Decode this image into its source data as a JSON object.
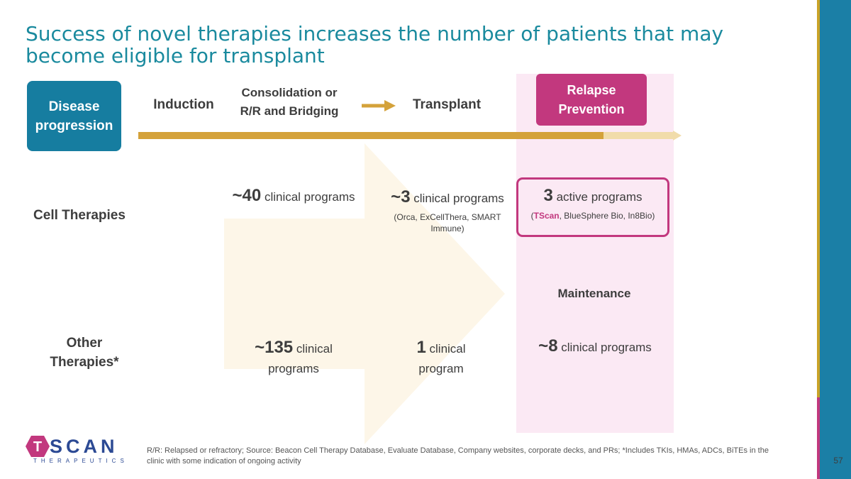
{
  "title": "Success of novel therapies increases the number of patients that may become eligible for transplant",
  "header": {
    "disease_progression": [
      "Disease",
      "progression"
    ],
    "induction": "Induction",
    "consolidation": [
      "Consolidation or",
      "R/R and Bridging"
    ],
    "transplant": "Transplant",
    "relapse_prevention": [
      "Relapse",
      "Prevention"
    ]
  },
  "rows": {
    "cell_therapies": "Cell Therapies",
    "other_therapies": [
      "Other",
      "Therapies*"
    ]
  },
  "cells": {
    "cell_consolidation": {
      "num": "~40",
      "text": " clinical programs"
    },
    "cell_transplant": {
      "num": "~3",
      "text": " clinical programs",
      "note": [
        "(Orca, ExCellThera, SMART",
        "Immune)"
      ]
    },
    "cell_relapse": {
      "num": "3",
      "text": " active programs",
      "note_prefix": "(",
      "note_brand": "TScan",
      "note_rest": ", BlueSphere Bio, In8Bio)"
    },
    "maintenance": "Maintenance",
    "other_consolidation": {
      "num": "~135",
      "text": " clinical",
      "line2": "programs"
    },
    "other_transplant": {
      "num": "1",
      "text": " clinical",
      "line2": "program"
    },
    "other_relapse": {
      "num": "~8",
      "text": " clinical programs"
    }
  },
  "footnote": "R/R: Relapsed or refractory; Source: Beacon Cell Therapy Database, Evaluate Database, Company websites, corporate decks, and PRs; *Includes TKIs, HMAs, ADCs, BiTEs in the clinic with some indication of ongoing activity",
  "page_number": "57",
  "logo": {
    "letter": "T",
    "word": "SCAN",
    "sub": "THERAPEUTICS"
  },
  "colors": {
    "title": "#1a8a9e",
    "disease_box": "#167da0",
    "relapse_box": "#c2387e",
    "timeline": "#d4a23a",
    "arrow_fill": "#fdf6e8",
    "relapse_bg": "#fbe9f4"
  }
}
